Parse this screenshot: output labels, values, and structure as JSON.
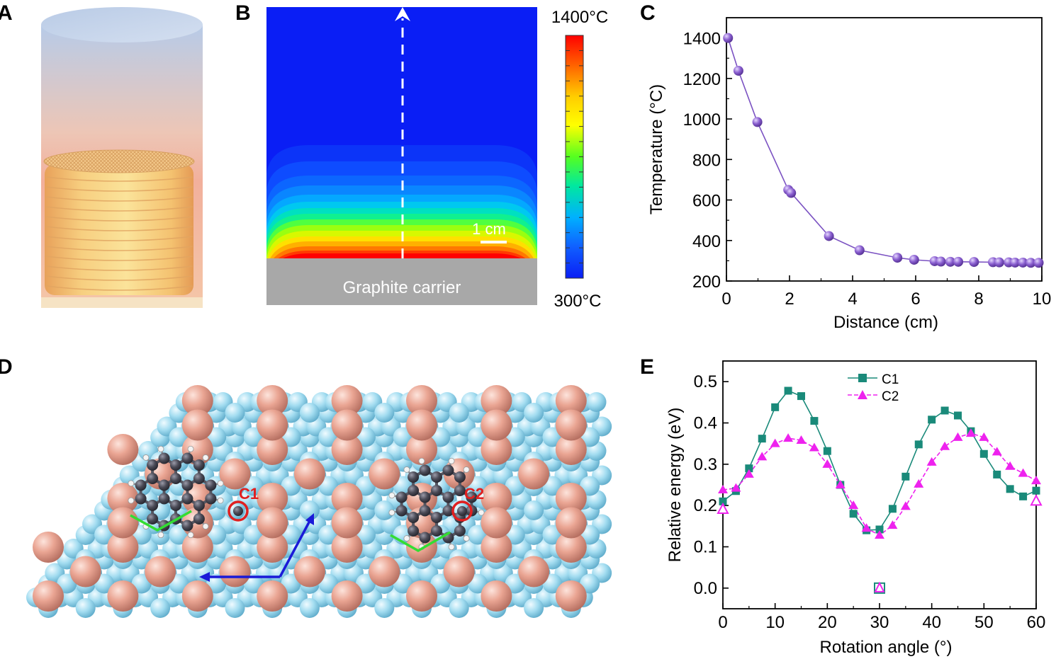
{
  "panels": {
    "a": {
      "letter": "A"
    },
    "b": {
      "letter": "B",
      "carrier_label": "Graphite carrier",
      "scale_label": "1 cm",
      "colorbar_max": "1400°C",
      "colorbar_min": "300°C"
    },
    "c": {
      "letter": "C"
    },
    "d": {
      "letter": "D",
      "site1": "C1",
      "site2": "C2"
    },
    "e": {
      "letter": "E"
    }
  },
  "colors": {
    "purple": "#7b52c2",
    "teal": "#1a8a7a",
    "magenta": "#ee22ee",
    "blue_field": "#0a1ef5",
    "graphite": "#a8a8a8",
    "copper_atom": "#e8a090",
    "cyan_atom": "#9ed8ee",
    "carbon": "#44444f",
    "site_ring": "#e02020",
    "lattice_vec": "#1a1ad8",
    "rot_vec": "#33dd33"
  },
  "chart_data": [
    {
      "type": "scatter",
      "xlabel": "Distance (cm)",
      "ylabel": "Temperature (°C)",
      "xlim": [
        0,
        10
      ],
      "ylim": [
        200,
        1500
      ],
      "xticks": [
        0,
        2,
        4,
        6,
        8,
        10
      ],
      "yticks": [
        200,
        400,
        600,
        800,
        1000,
        1200,
        1400
      ],
      "x": [
        0.05,
        0.38,
        0.98,
        1.96,
        2.05,
        3.25,
        4.22,
        5.42,
        5.95,
        6.6,
        6.8,
        7.1,
        7.35,
        7.85,
        8.45,
        8.65,
        8.95,
        9.15,
        9.4,
        9.65,
        9.9
      ],
      "y": [
        1400,
        1238,
        985,
        650,
        635,
        422,
        352,
        315,
        305,
        298,
        296,
        295,
        295,
        294,
        293,
        292,
        292,
        291,
        291,
        290,
        290
      ]
    },
    {
      "type": "line",
      "xlabel": "Rotation angle (°)",
      "ylabel": "Relative energy (eV)",
      "xlim": [
        0,
        60
      ],
      "ylim": [
        -0.05,
        0.55
      ],
      "xticks": [
        0,
        10,
        20,
        30,
        40,
        50,
        60
      ],
      "yticks": [
        0.0,
        0.1,
        0.2,
        0.3,
        0.4,
        0.5
      ],
      "series": [
        {
          "name": "C1",
          "x": [
            0,
            2.5,
            5,
            7.5,
            10,
            12.5,
            15,
            17.5,
            20,
            22.5,
            25,
            27.5,
            30,
            32.5,
            35,
            37.5,
            40,
            42.5,
            45,
            47.5,
            50,
            52.5,
            55,
            57.5,
            60
          ],
          "y": [
            0.21,
            0.235,
            0.29,
            0.362,
            0.438,
            0.478,
            0.465,
            0.405,
            0.332,
            0.25,
            0.18,
            0.14,
            0.142,
            0.192,
            0.27,
            0.348,
            0.408,
            0.43,
            0.418,
            0.38,
            0.325,
            0.275,
            0.24,
            0.222,
            0.236
          ]
        },
        {
          "name": "C2",
          "x": [
            0,
            2.5,
            5,
            7.5,
            10,
            12.5,
            15,
            17.5,
            20,
            22.5,
            25,
            27.5,
            30,
            32.5,
            35,
            37.5,
            40,
            42.5,
            45,
            47.5,
            50,
            52.5,
            55,
            57.5,
            60
          ],
          "y": [
            0.238,
            0.242,
            0.276,
            0.318,
            0.35,
            0.363,
            0.358,
            0.34,
            0.3,
            0.25,
            0.2,
            0.145,
            0.128,
            0.152,
            0.198,
            0.252,
            0.305,
            0.343,
            0.365,
            0.375,
            0.365,
            0.33,
            0.295,
            0.278,
            0.26
          ]
        }
      ],
      "markers_at_zero": [
        {
          "series": "C1",
          "x": 30,
          "y": 0.0
        },
        {
          "series": "C2",
          "x": 30,
          "y": 0.0
        }
      ],
      "end_markers": [
        {
          "series": "C2",
          "x": 0,
          "y": 0.19
        },
        {
          "series": "C2",
          "x": 60,
          "y": 0.21
        }
      ],
      "legend": "top-center"
    }
  ]
}
